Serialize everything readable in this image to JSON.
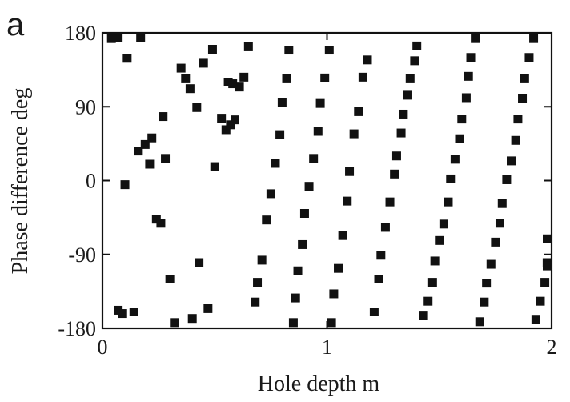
{
  "panel_label": "a",
  "chart_data": {
    "type": "scatter",
    "xlabel": "Hole depth  m",
    "ylabel": "Phase difference  deg",
    "xlim": [
      0,
      2
    ],
    "ylim": [
      -180,
      180
    ],
    "xticks": [
      0,
      1,
      2
    ],
    "xtick_labels": [
      "0",
      "1",
      "2"
    ],
    "yticks": [
      -180,
      -90,
      0,
      90,
      180
    ],
    "ytick_labels": [
      "-180",
      "-90",
      "0",
      "90",
      "180"
    ],
    "marker": "square",
    "marker_color": "#111111",
    "grid": false,
    "points": [
      [
        0.04,
        173
      ],
      [
        0.05,
        177
      ],
      [
        0.07,
        176
      ],
      [
        0.11,
        149
      ],
      [
        0.17,
        176
      ],
      [
        0.35,
        137
      ],
      [
        0.37,
        124
      ],
      [
        0.39,
        112
      ],
      [
        0.42,
        89
      ],
      [
        0.45,
        143
      ],
      [
        0.49,
        160
      ],
      [
        0.53,
        76
      ],
      [
        0.55,
        62
      ],
      [
        0.57,
        68
      ],
      [
        0.59,
        74
      ],
      [
        0.56,
        120
      ],
      [
        0.58,
        118
      ],
      [
        0.61,
        114
      ],
      [
        0.63,
        126
      ],
      [
        0.65,
        163
      ],
      [
        0.27,
        78
      ],
      [
        0.22,
        52
      ],
      [
        0.19,
        44
      ],
      [
        0.16,
        36
      ],
      [
        0.21,
        20
      ],
      [
        0.28,
        27
      ],
      [
        0.5,
        17
      ],
      [
        0.1,
        -5
      ],
      [
        0.24,
        -47
      ],
      [
        0.26,
        -52
      ],
      [
        0.43,
        -100
      ],
      [
        0.3,
        -120
      ],
      [
        0.07,
        -158
      ],
      [
        0.09,
        -162
      ],
      [
        0.14,
        -160
      ],
      [
        0.32,
        -173
      ],
      [
        0.4,
        -168
      ],
      [
        0.47,
        -156
      ],
      [
        0.68,
        -148
      ],
      [
        0.69,
        -124
      ],
      [
        0.71,
        -97
      ],
      [
        0.73,
        -48
      ],
      [
        0.75,
        -16
      ],
      [
        0.77,
        21
      ],
      [
        0.79,
        56
      ],
      [
        0.8,
        95
      ],
      [
        0.82,
        124
      ],
      [
        0.83,
        159
      ],
      [
        0.85,
        -173
      ],
      [
        0.86,
        -143
      ],
      [
        0.87,
        -110
      ],
      [
        0.89,
        -78
      ],
      [
        0.9,
        -40
      ],
      [
        0.92,
        -7
      ],
      [
        0.94,
        27
      ],
      [
        0.96,
        60
      ],
      [
        0.97,
        94
      ],
      [
        0.99,
        125
      ],
      [
        1.01,
        159
      ],
      [
        1.02,
        -173
      ],
      [
        1.03,
        -138
      ],
      [
        1.05,
        -107
      ],
      [
        1.07,
        -67
      ],
      [
        1.09,
        -25
      ],
      [
        1.1,
        11
      ],
      [
        1.12,
        57
      ],
      [
        1.14,
        84
      ],
      [
        1.16,
        126
      ],
      [
        1.18,
        147
      ],
      [
        1.21,
        -160
      ],
      [
        1.23,
        -120
      ],
      [
        1.24,
        -91
      ],
      [
        1.26,
        -57
      ],
      [
        1.28,
        -26
      ],
      [
        1.3,
        8
      ],
      [
        1.31,
        30
      ],
      [
        1.33,
        58
      ],
      [
        1.34,
        81
      ],
      [
        1.36,
        104
      ],
      [
        1.37,
        124
      ],
      [
        1.39,
        146
      ],
      [
        1.4,
        164
      ],
      [
        1.43,
        -164
      ],
      [
        1.45,
        -147
      ],
      [
        1.47,
        -124
      ],
      [
        1.48,
        -98
      ],
      [
        1.5,
        -73
      ],
      [
        1.52,
        -53
      ],
      [
        1.54,
        -26
      ],
      [
        1.55,
        2
      ],
      [
        1.57,
        26
      ],
      [
        1.59,
        51
      ],
      [
        1.6,
        75
      ],
      [
        1.62,
        101
      ],
      [
        1.63,
        127
      ],
      [
        1.64,
        150
      ],
      [
        1.66,
        173
      ],
      [
        1.68,
        -172
      ],
      [
        1.7,
        -148
      ],
      [
        1.71,
        -125
      ],
      [
        1.73,
        -102
      ],
      [
        1.75,
        -75
      ],
      [
        1.77,
        -52
      ],
      [
        1.78,
        -28
      ],
      [
        1.8,
        1
      ],
      [
        1.82,
        24
      ],
      [
        1.84,
        49
      ],
      [
        1.85,
        75
      ],
      [
        1.87,
        100
      ],
      [
        1.88,
        124
      ],
      [
        1.9,
        150
      ],
      [
        1.92,
        173
      ],
      [
        1.93,
        -169
      ],
      [
        1.95,
        -147
      ],
      [
        1.97,
        -124
      ],
      [
        1.98,
        -100
      ],
      [
        1.99,
        -104
      ],
      [
        2.0,
        -71
      ]
    ]
  }
}
